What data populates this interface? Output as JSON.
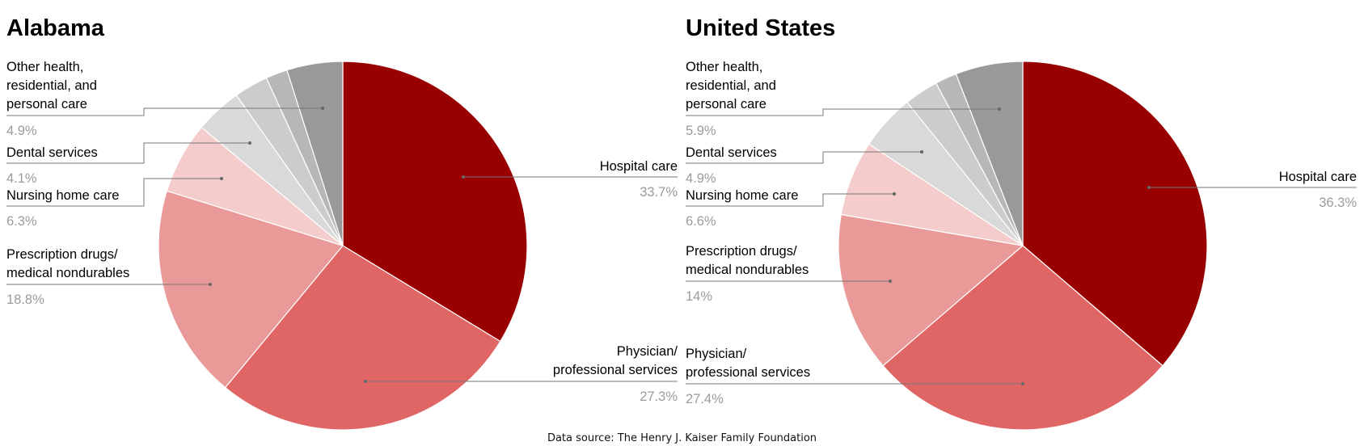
{
  "source_note": "Data source: The Henry J. Kaiser Family Foundation",
  "chart_data": [
    {
      "type": "pie",
      "title": "Alabama",
      "slices": [
        {
          "label": "Hospital care",
          "lines": [
            "Hospital care"
          ],
          "value": 33.7,
          "display": "33.7%",
          "color": "#990000"
        },
        {
          "label": "Physician/ professional services",
          "lines": [
            "Physician/",
            "professional services"
          ],
          "value": 27.3,
          "display": "27.3%",
          "color": "#e06666"
        },
        {
          "label": "Prescription drugs/ medical nondurables",
          "lines": [
            "Prescription drugs/",
            "medical nondurables"
          ],
          "value": 18.8,
          "display": "18.8%",
          "color": "#ea9999"
        },
        {
          "label": "Nursing home care",
          "lines": [
            "Nursing home care"
          ],
          "value": 6.3,
          "display": "6.3%",
          "color": "#f4cccc"
        },
        {
          "label": "Dental services",
          "lines": [
            "Dental services"
          ],
          "value": 4.1,
          "display": "4.1%",
          "color": "#d9d9d9"
        },
        {
          "label": "",
          "lines": [],
          "value": 3.0,
          "display": "",
          "color": "#cccccc"
        },
        {
          "label": "",
          "lines": [],
          "value": 1.9,
          "display": "",
          "color": "#b7b7b7"
        },
        {
          "label": "Other health, residential, and personal care",
          "lines": [
            "Other health,",
            "residential, and",
            "personal care"
          ],
          "value": 4.9,
          "display": "4.9%",
          "color": "#999999"
        }
      ]
    },
    {
      "type": "pie",
      "title": "United States",
      "slices": [
        {
          "label": "Hospital care",
          "lines": [
            "Hospital care"
          ],
          "value": 36.3,
          "display": "36.3%",
          "color": "#990000"
        },
        {
          "label": "Physician/ professional services",
          "lines": [
            "Physician/",
            "professional services"
          ],
          "value": 27.4,
          "display": "27.4%",
          "color": "#e06666"
        },
        {
          "label": "Prescription drugs/ medical nondurables",
          "lines": [
            "Prescription drugs/",
            "medical nondurables"
          ],
          "value": 14.0,
          "display": "14%",
          "color": "#ea9999"
        },
        {
          "label": "Nursing home care",
          "lines": [
            "Nursing home care"
          ],
          "value": 6.6,
          "display": "6.6%",
          "color": "#f4cccc"
        },
        {
          "label": "Dental services",
          "lines": [
            "Dental services"
          ],
          "value": 4.9,
          "display": "4.9%",
          "color": "#d9d9d9"
        },
        {
          "label": "",
          "lines": [],
          "value": 3.0,
          "display": "",
          "color": "#cccccc"
        },
        {
          "label": "",
          "lines": [],
          "value": 1.9,
          "display": "",
          "color": "#b7b7b7"
        },
        {
          "label": "Other health, residential, and personal care",
          "lines": [
            "Other health,",
            "residential, and",
            "personal care"
          ],
          "value": 5.9,
          "display": "5.9%",
          "color": "#999999"
        }
      ]
    }
  ]
}
